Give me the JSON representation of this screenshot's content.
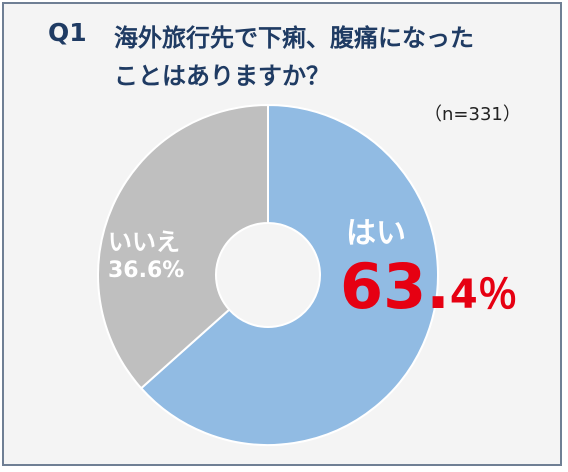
{
  "question": {
    "number": "Q1",
    "line1": "海外旅行先で下痢、腹痛になった",
    "line2": "ことはありますか？"
  },
  "sample_size": "（n=331）",
  "chart_data": {
    "type": "pie",
    "variant": "donut",
    "slices": [
      {
        "label": "はい",
        "value": 63.4,
        "color": "#91bbe3",
        "display_value_major": "63.",
        "display_value_minor": "4％",
        "value_color": "#e60012"
      },
      {
        "label": "いいえ",
        "value": 36.6,
        "color": "#bfbfbf",
        "display_value": "36.6%",
        "value_color": "#ffffff"
      }
    ],
    "start": "top",
    "direction": "clockwise"
  }
}
